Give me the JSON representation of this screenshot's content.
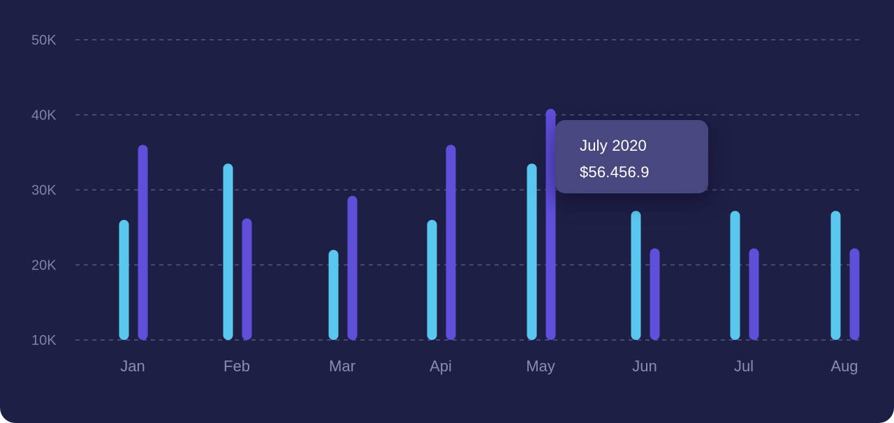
{
  "chart_data": {
    "type": "bar",
    "categories": [
      "Jan",
      "Feb",
      "Mar",
      "Api",
      "May",
      "Jun",
      "Jul",
      "Aug"
    ],
    "y_ticks": [
      "10K",
      "20K",
      "30K",
      "40K",
      "50K"
    ],
    "ylim": [
      10000,
      50000
    ],
    "grid": true,
    "series": [
      {
        "color": "#5ac8ee",
        "values": [
          26000,
          33500,
          22000,
          26000,
          33500,
          27200,
          27200,
          27200
        ]
      },
      {
        "color": "#5f4fdb",
        "values": [
          36000,
          26200,
          29200,
          36000,
          40800,
          22200,
          22200,
          22200
        ]
      }
    ],
    "tooltip": {
      "date": "July 2020",
      "value": "$56.456.9"
    }
  },
  "colors": {
    "background": "#1e1f45",
    "grid": "#565985",
    "tooltip_bg": "#48477f"
  }
}
